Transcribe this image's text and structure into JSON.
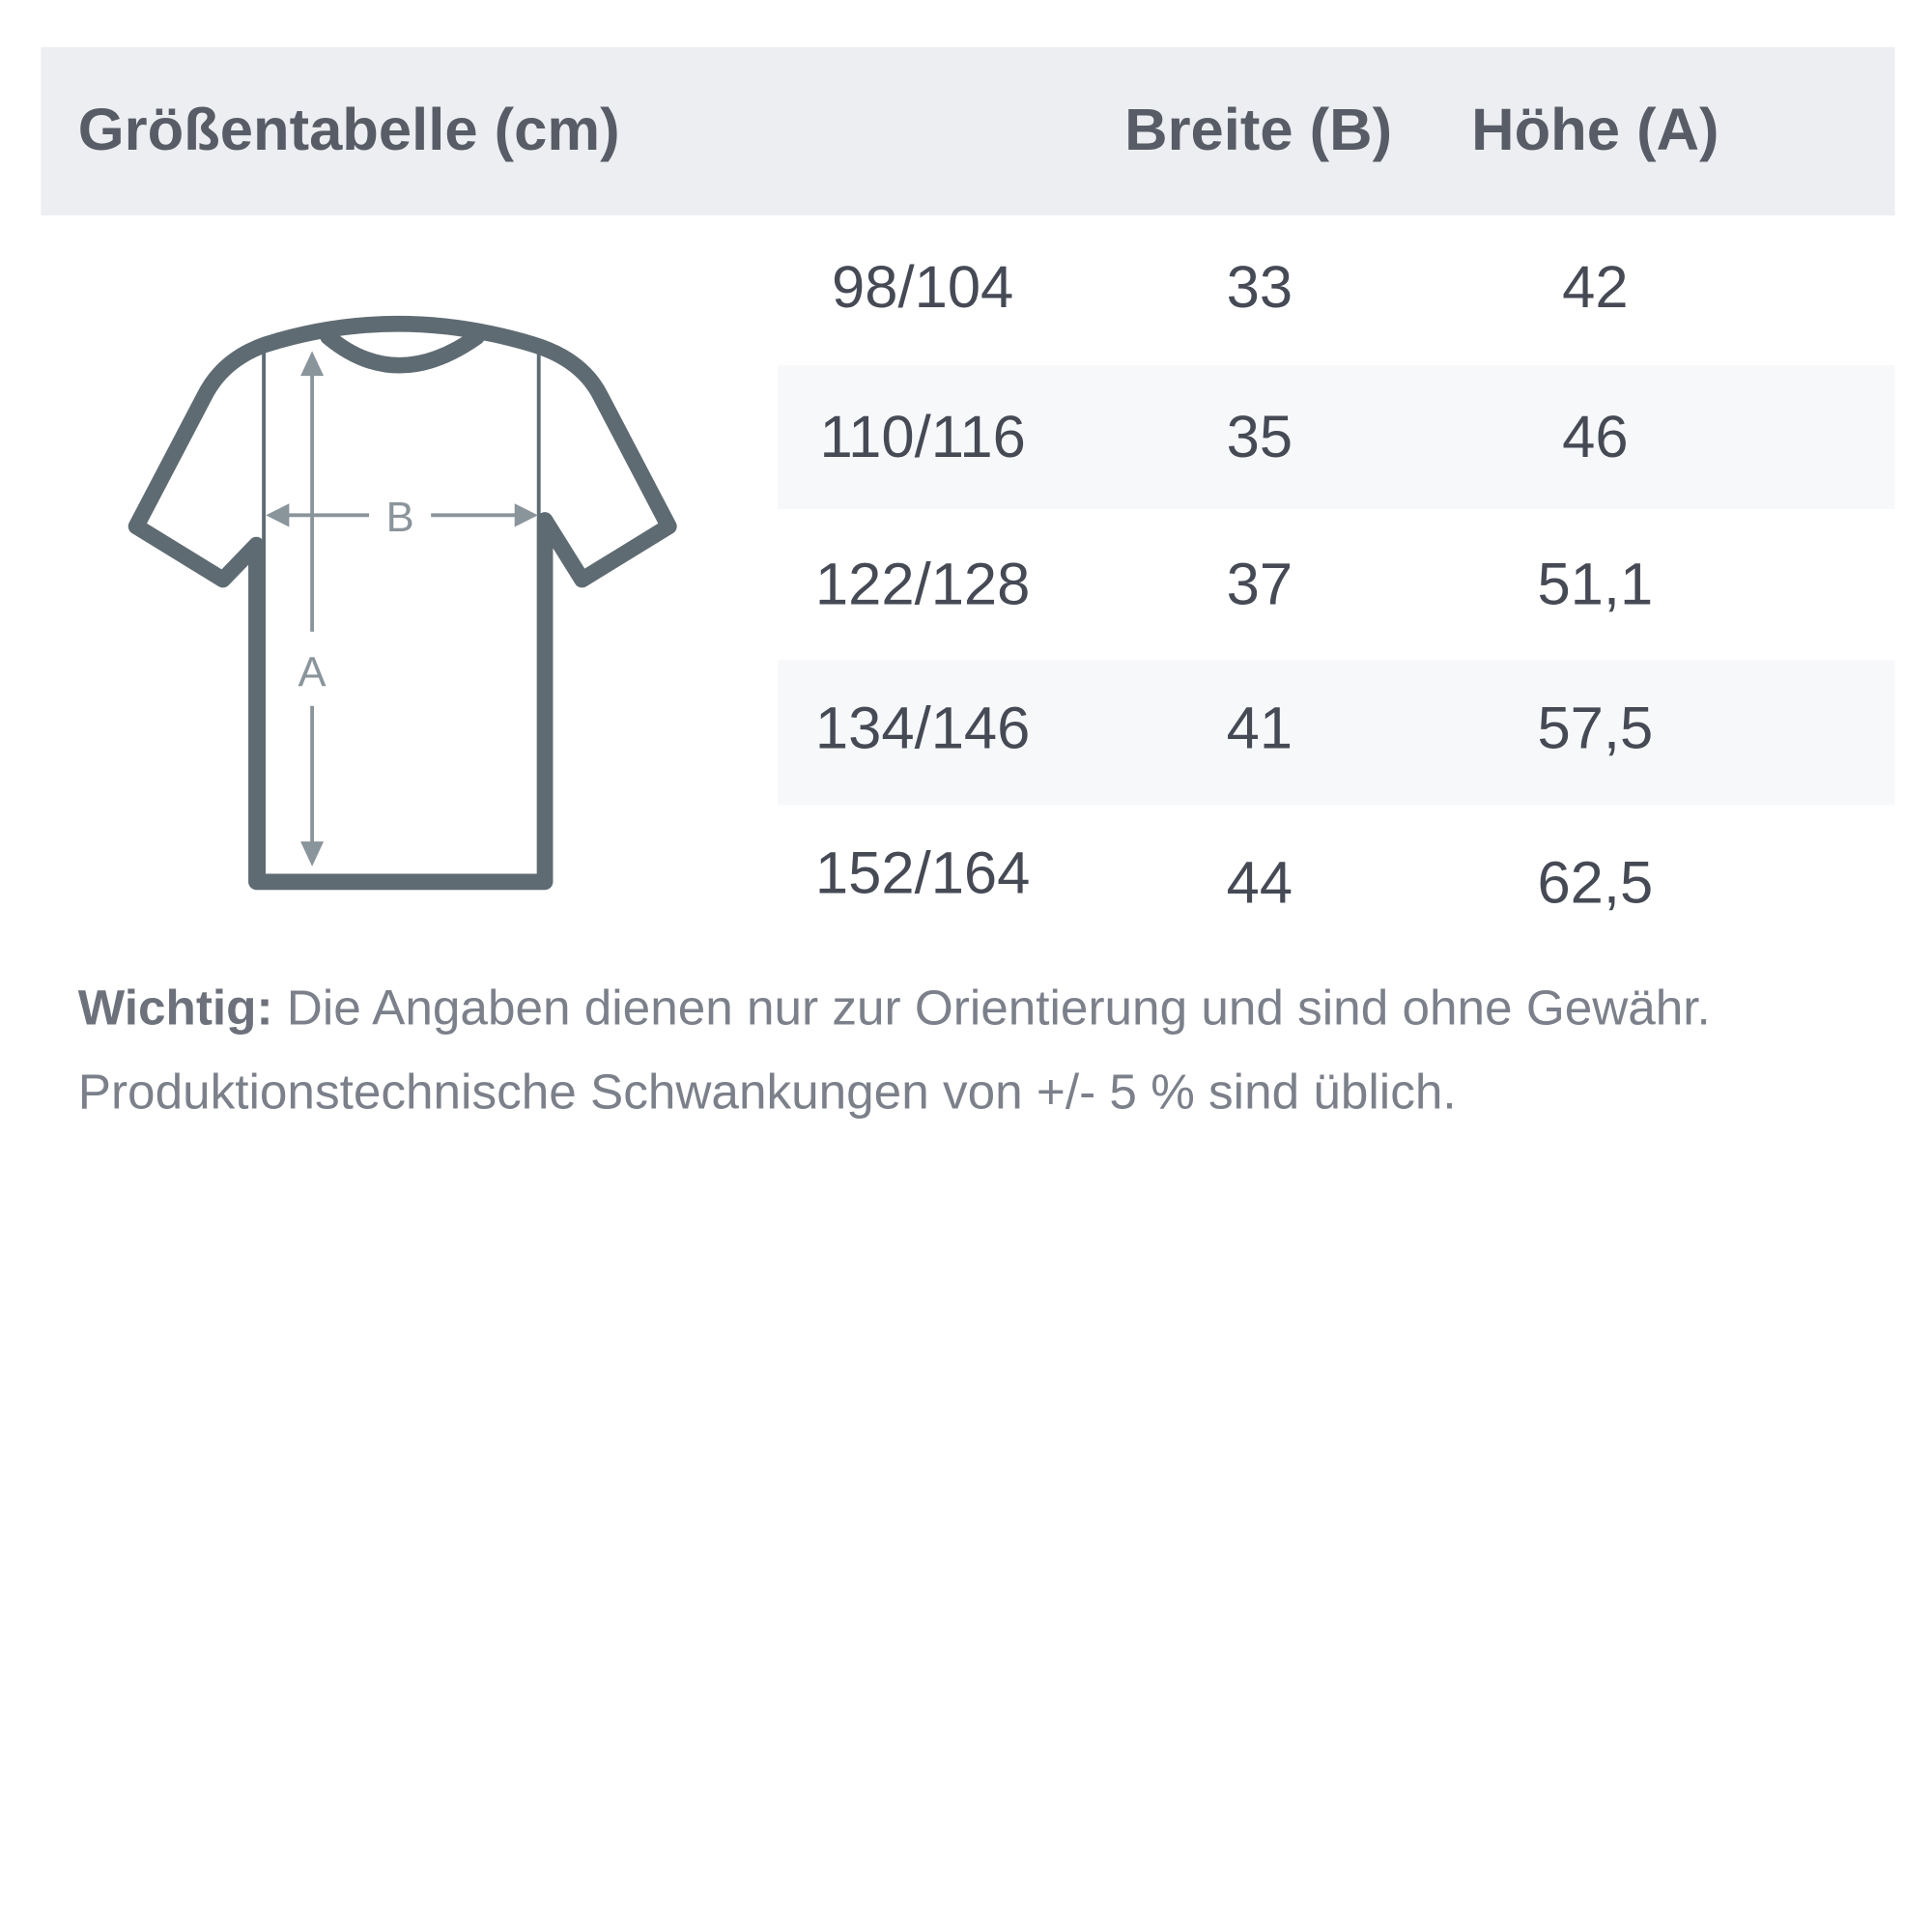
{
  "table": {
    "title": "Größentabelle (cm)",
    "columns": [
      "Breite (B)",
      "Höhe (A)"
    ],
    "rows": [
      {
        "size": "98/104",
        "breite": "33",
        "hoehe": "42"
      },
      {
        "size": "110/116",
        "breite": "35",
        "hoehe": "46"
      },
      {
        "size": "122/128",
        "breite": "37",
        "hoehe": "51,1"
      },
      {
        "size": "134/146",
        "breite": "41",
        "hoehe": "57,5"
      },
      {
        "size": "152/164",
        "breite": "44",
        "hoehe": "62,5"
      }
    ]
  },
  "diagram": {
    "label_b": "B",
    "label_a": "A",
    "icon": "tshirt-icon",
    "color": "#5f6b72"
  },
  "note": {
    "label": "Wichtig:",
    "line1": " Die Angaben dienen nur zur Orientierung und sind ohne Gewähr.",
    "line2": "Produktionstechnische Schwankungen von +/- 5 % sind üblich."
  }
}
